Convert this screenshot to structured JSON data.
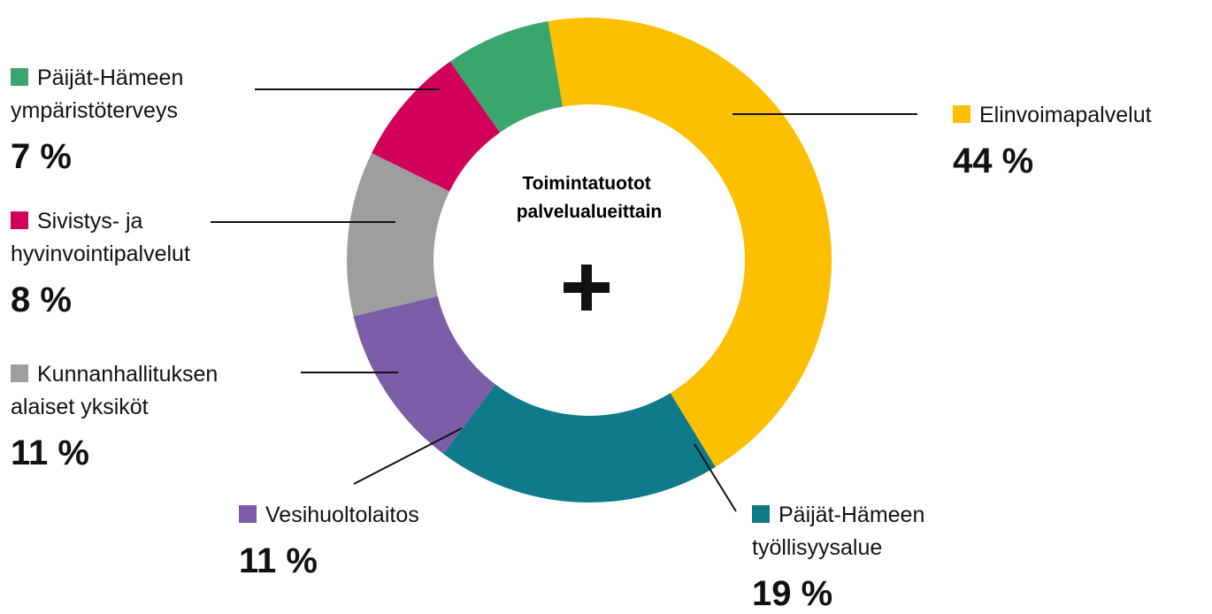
{
  "chart_data": {
    "type": "donut",
    "title": "Toimintatuotot palvelualueittain",
    "categories": [
      "Elinvoimapalvelut",
      "Päijät-Hämeen työllisyysalue",
      "Vesihuoltolaitos",
      "Kunnanhallituksen alaiset yksiköt",
      "Sivistys- ja hyvinvointipalvelut",
      "Päijät-Hämeen ympäristöterveys"
    ],
    "values": [
      44,
      19,
      11,
      11,
      8,
      7
    ],
    "value_labels": [
      "44 %",
      "19 %",
      "11 %",
      "11 %",
      "8 %",
      "7 %"
    ],
    "colors": [
      "#fcc000",
      "#0e7a8a",
      "#7b5ea7",
      "#9e9e9e",
      "#d1005a",
      "#3aa56d"
    ]
  }
}
